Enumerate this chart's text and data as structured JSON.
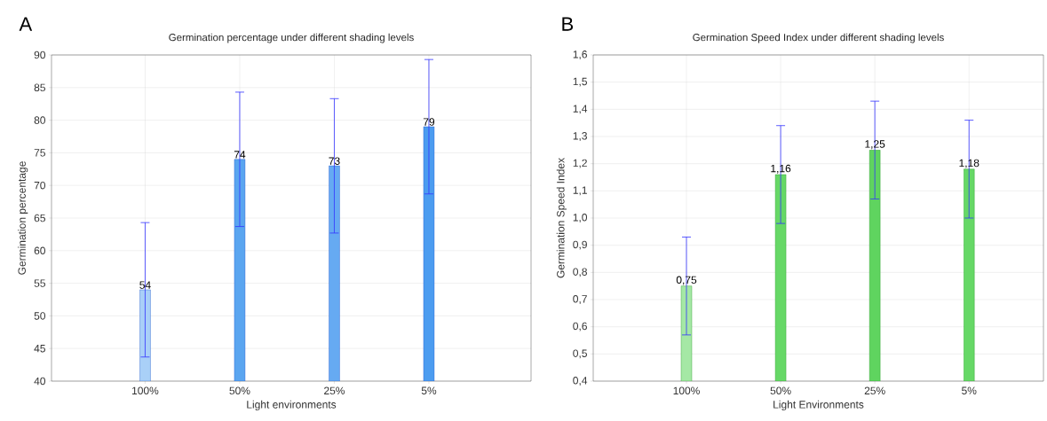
{
  "chart_data": [
    {
      "type": "bar",
      "title": "Germination percentage under different shading levels",
      "xlabel": "Light environments",
      "ylabel": "Germination percentage",
      "annotations": [
        "A"
      ],
      "categories": [
        "100%",
        "50%",
        "25%",
        "5%"
      ],
      "values": [
        54,
        74,
        73,
        79
      ],
      "errors": [
        10.3,
        10.3,
        10.3,
        10.3
      ],
      "colors": [
        "#a9d0f7",
        "#5aa5f0",
        "#66aaf2",
        "#4c9cf0"
      ],
      "ylim": [
        40,
        90
      ],
      "yticks": [
        40,
        45,
        50,
        55,
        60,
        65,
        70,
        75,
        80,
        85,
        90
      ],
      "grid": true,
      "data_labels": true
    },
    {
      "type": "bar",
      "title": "Germination Speed Index under different shading levels",
      "xlabel": "Light Environments",
      "ylabel": "Germination Speed Index",
      "annotations": [
        "B"
      ],
      "categories": [
        "100%",
        "50%",
        "25%",
        "5%"
      ],
      "values": [
        0.75,
        1.16,
        1.25,
        1.18
      ],
      "value_labels": [
        "0,75",
        "1,16",
        "1,25",
        "1,18"
      ],
      "errors": [
        0.18,
        0.18,
        0.18,
        0.18
      ],
      "colors": [
        "#a5e8a5",
        "#66d866",
        "#5fd45f",
        "#66d866"
      ],
      "ylim": [
        0.4,
        1.6
      ],
      "yticks": [
        {
          "value": 0.4,
          "label": "0,4"
        },
        {
          "value": 0.5,
          "label": "0,5"
        },
        {
          "value": 0.6,
          "label": "0,6"
        },
        {
          "value": 0.7,
          "label": "0,7"
        },
        {
          "value": 0.8,
          "label": "0,8"
        },
        {
          "value": 0.9,
          "label": "0,9"
        },
        {
          "value": 1.0,
          "label": "1,0"
        },
        {
          "value": 1.1,
          "label": "1,1"
        },
        {
          "value": 1.2,
          "label": "1,2"
        },
        {
          "value": 1.3,
          "label": "1,3"
        },
        {
          "value": 1.4,
          "label": "1,4"
        },
        {
          "value": 1.5,
          "label": "1,5"
        },
        {
          "value": 1.6,
          "label": "1,6"
        }
      ],
      "grid": true
    }
  ]
}
